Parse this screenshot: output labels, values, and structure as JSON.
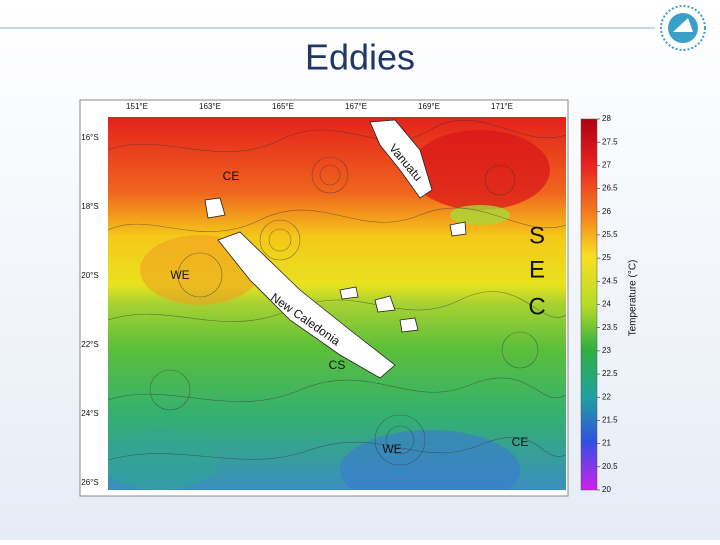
{
  "slide": {
    "title": "Eddies"
  },
  "map": {
    "lon_labels": [
      "151°E",
      "163°E",
      "165°E",
      "167°E",
      "169°E",
      "171°E"
    ],
    "lat_labels": [
      "16°S",
      "18°S",
      "20°S",
      "22°S",
      "24°S",
      "26°S"
    ],
    "annotations": {
      "ce_north": "CE",
      "we_west": "WE",
      "vanuatu": "Vanuatu",
      "new_caledonia": "New Caledonia",
      "cs": "CS",
      "sec_s": "S",
      "sec_e": "E",
      "sec_c": "C",
      "we_south": "WE",
      "ce_east": "CE"
    },
    "colorbar": {
      "label": "Temperature (°C)",
      "ticks": [
        28,
        27.5,
        27,
        26.5,
        26,
        25.5,
        25,
        24.5,
        24,
        23.5,
        23,
        22.5,
        22,
        21.5,
        21,
        20.5,
        20
      ]
    }
  }
}
